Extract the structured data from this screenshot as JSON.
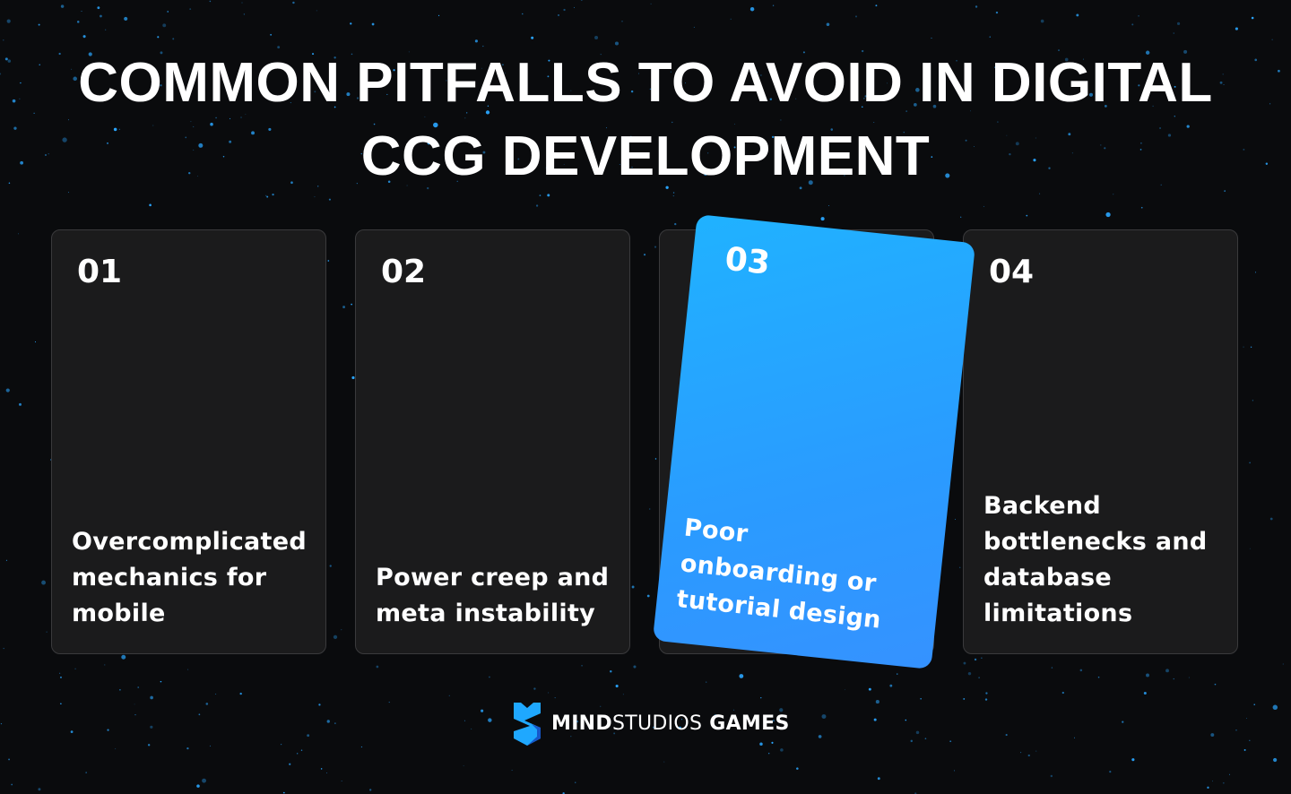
{
  "title_lines": [
    "COMMON PITFALLS TO AVOID IN DIGITAL",
    "CCG DEVELOPMENT"
  ],
  "cards": [
    {
      "number": "01",
      "text": "Overcomplicated mechanics for mobile"
    },
    {
      "number": "02",
      "text": "Power creep and meta instability"
    },
    {
      "number": "03",
      "text": "Poor onboarding or tutorial design",
      "highlighted": true
    },
    {
      "number": "04",
      "text": "Backend bottlenecks and database limitations"
    }
  ],
  "logo": {
    "part1": "MIND",
    "part2": "STUDIOS",
    "part3": " GAMES",
    "icon": "mind-studios-shield-logo"
  },
  "colors": {
    "background": "#0a0b0d",
    "card": "#1b1b1c",
    "accent": "#20b2ff",
    "stars": "#2aa6ff"
  }
}
